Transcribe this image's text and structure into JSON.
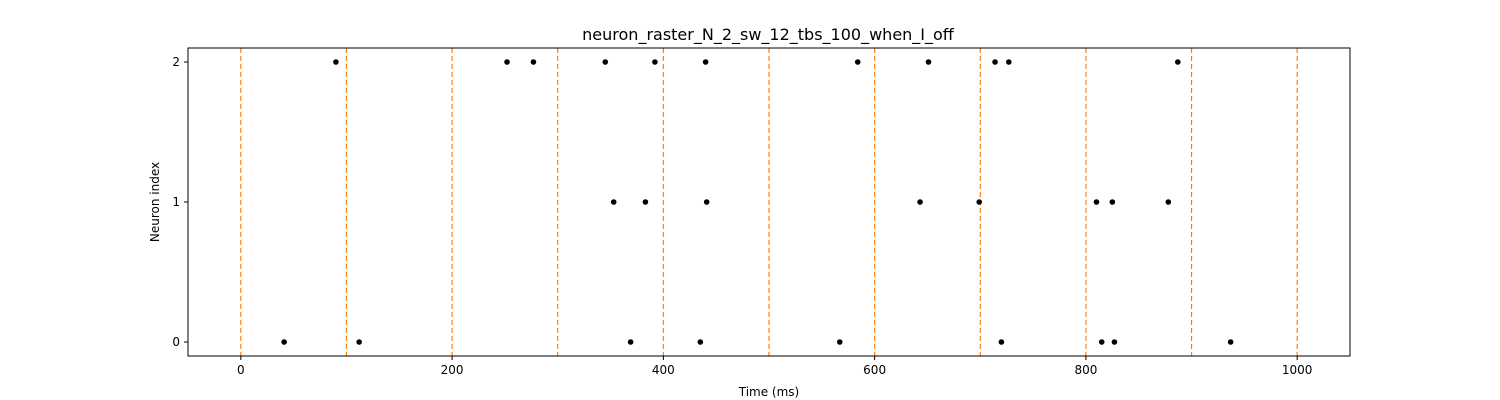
{
  "chart_data": {
    "type": "scatter",
    "title": "neuron_raster_N_2_sw_12_tbs_100_when_I_off",
    "xlabel": "Time (ms)",
    "ylabel": "Neuron index",
    "xlim": [
      -50,
      1050
    ],
    "ylim": [
      -0.1,
      2.1
    ],
    "xticks": [
      0,
      200,
      400,
      600,
      800,
      1000
    ],
    "yticks": [
      0,
      1,
      2
    ],
    "grid": false,
    "marker_color": "#000000",
    "vlines": {
      "positions": [
        0,
        100,
        200,
        300,
        400,
        500,
        600,
        700,
        800,
        900,
        1000
      ],
      "color": "#ff7f0e",
      "style": "dashed"
    },
    "series": [
      {
        "y": 2,
        "x": [
          90,
          252,
          277,
          345,
          392,
          440,
          584,
          651,
          714,
          727,
          887
        ]
      },
      {
        "y": 1,
        "x": [
          353,
          383,
          441,
          643,
          699,
          810,
          825,
          878
        ]
      },
      {
        "y": 0,
        "x": [
          41,
          112,
          369,
          435,
          567,
          720,
          815,
          827,
          937
        ]
      }
    ]
  }
}
